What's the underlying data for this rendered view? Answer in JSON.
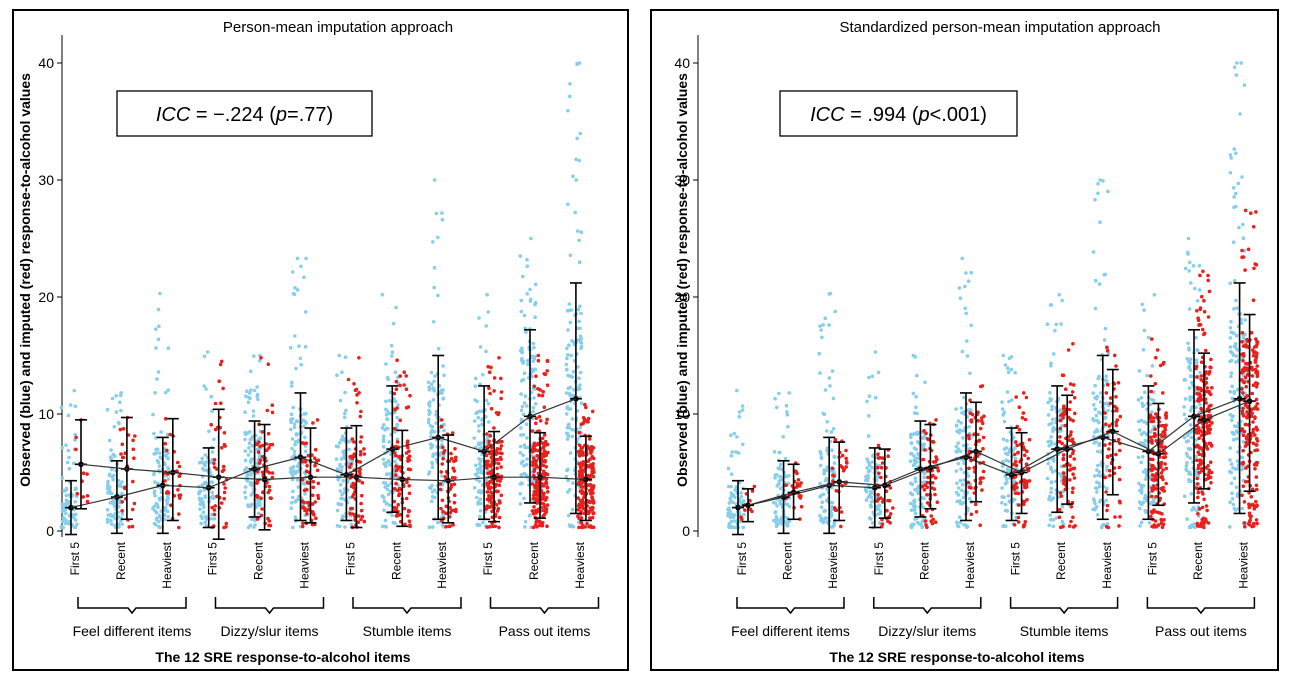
{
  "chart_data": [
    {
      "type": "scatter",
      "title": "Person-mean imputation approach",
      "annotation": {
        "label": "ICC",
        "equals": " = ",
        "value": "−.224",
        "p_prefix": " (",
        "p_label": "p",
        "p_value": "=.77",
        "p_suffix": ")"
      },
      "ylabel": "Observed (blue) and imputed (red) response-to-alcohol values",
      "xlabel": "The 12 SRE response-to-alcohol items",
      "ylim": [
        0,
        43
      ],
      "yticks": [
        0,
        10,
        20,
        30,
        40
      ],
      "categories": [
        "First 5",
        "Recent",
        "Heaviest",
        "First 5",
        "Recent",
        "Heaviest",
        "First 5",
        "Recent",
        "Heaviest",
        "First 5",
        "Recent",
        "Heaviest"
      ],
      "groups": [
        "Feel different items",
        "Dizzy/slur items",
        "Stumble items",
        "Pass out items"
      ],
      "series": [
        {
          "name": "observed",
          "color": "#87ceeb",
          "mean": [
            2.0,
            2.9,
            3.9,
            3.7,
            5.3,
            6.3,
            4.8,
            7.0,
            8.0,
            6.8,
            9.8,
            11.3
          ],
          "sd_low": [
            -0.3,
            -0.2,
            -0.2,
            0.3,
            1.2,
            0.9,
            0.9,
            1.6,
            1.0,
            1.0,
            2.4,
            1.5
          ],
          "sd_high": [
            4.3,
            6.0,
            8.0,
            7.1,
            9.4,
            11.8,
            8.8,
            12.4,
            15.0,
            12.4,
            17.2,
            21.2
          ],
          "max": [
            12,
            11.8,
            20.3,
            15.3,
            15,
            23.3,
            15,
            20.2,
            30,
            20.2,
            25,
            40
          ],
          "count": [
            80,
            90,
            100,
            80,
            110,
            110,
            90,
            110,
            120,
            100,
            130,
            150
          ]
        },
        {
          "name": "imputed",
          "color": "#e8211c",
          "mean": [
            5.7,
            5.3,
            5.0,
            4.6,
            4.4,
            4.6,
            4.6,
            4.4,
            4.3,
            4.6,
            4.6,
            4.4
          ],
          "sd_low": [
            1.9,
            1.0,
            0.9,
            -0.7,
            0.1,
            0.7,
            0.3,
            0.4,
            0.7,
            0.8,
            1.1,
            0.9
          ],
          "sd_high": [
            9.5,
            9.7,
            9.6,
            10.4,
            9.1,
            8.8,
            9.0,
            8.6,
            8.2,
            8.5,
            8.4,
            8.1
          ],
          "max": [
            9.5,
            9.7,
            9.6,
            14.5,
            14.8,
            9.5,
            14.8,
            14.6,
            9.5,
            14.8,
            15,
            10.8
          ],
          "count": [
            10,
            25,
            30,
            40,
            60,
            60,
            70,
            90,
            60,
            150,
            200,
            200
          ]
        }
      ]
    },
    {
      "type": "scatter",
      "title": "Standardized person-mean imputation approach",
      "annotation": {
        "label": "ICC",
        "equals": " = ",
        "value": ".994",
        "p_prefix": " (",
        "p_label": "p",
        "p_value": "<.001",
        "p_suffix": ")"
      },
      "ylabel": "Observed (blue) and imputed (red) response-to-alcohol values",
      "xlabel": "The 12 SRE response-to-alcohol items",
      "ylim": [
        0,
        43
      ],
      "yticks": [
        0,
        10,
        20,
        30,
        40
      ],
      "categories": [
        "First 5",
        "Recent",
        "Heaviest",
        "First 5",
        "Recent",
        "Heaviest",
        "First 5",
        "Recent",
        "Heaviest",
        "First 5",
        "Recent",
        "Heaviest"
      ],
      "groups": [
        "Feel different items",
        "Dizzy/slur items",
        "Stumble items",
        "Pass out items"
      ],
      "series": [
        {
          "name": "observed",
          "color": "#87ceeb",
          "mean": [
            2.0,
            2.9,
            3.9,
            3.7,
            5.3,
            6.3,
            4.8,
            7.0,
            8.0,
            6.8,
            9.8,
            11.3
          ],
          "sd_low": [
            -0.3,
            -0.2,
            -0.2,
            0.3,
            1.2,
            0.9,
            0.9,
            1.6,
            1.0,
            1.0,
            2.4,
            1.5
          ],
          "sd_high": [
            4.3,
            6.0,
            8.0,
            7.1,
            9.4,
            11.8,
            8.8,
            12.4,
            15.0,
            12.4,
            17.2,
            21.2
          ],
          "max": [
            12,
            11.8,
            20.3,
            15.3,
            15,
            23.3,
            15,
            20.2,
            30,
            20.2,
            25,
            40
          ],
          "count": [
            80,
            90,
            100,
            80,
            110,
            110,
            90,
            110,
            120,
            100,
            130,
            150
          ]
        },
        {
          "name": "imputed",
          "color": "#e8211c",
          "mean": [
            2.2,
            3.3,
            4.2,
            3.9,
            5.4,
            6.8,
            5.0,
            7.0,
            8.5,
            6.6,
            9.5,
            11.1
          ],
          "sd_low": [
            0.8,
            1.0,
            0.9,
            1.1,
            1.9,
            2.5,
            1.5,
            2.3,
            3.1,
            2.2,
            3.6,
            3.4
          ],
          "sd_high": [
            3.6,
            5.7,
            7.6,
            7.0,
            9.1,
            11.0,
            8.4,
            11.6,
            13.8,
            10.9,
            15.2,
            18.5
          ],
          "max": [
            3.8,
            5.8,
            7.8,
            7.3,
            9.5,
            12.4,
            11.8,
            16,
            15.7,
            16.4,
            22.2,
            27.4
          ],
          "count": [
            10,
            25,
            30,
            40,
            60,
            60,
            70,
            90,
            60,
            150,
            200,
            200
          ]
        }
      ]
    }
  ]
}
